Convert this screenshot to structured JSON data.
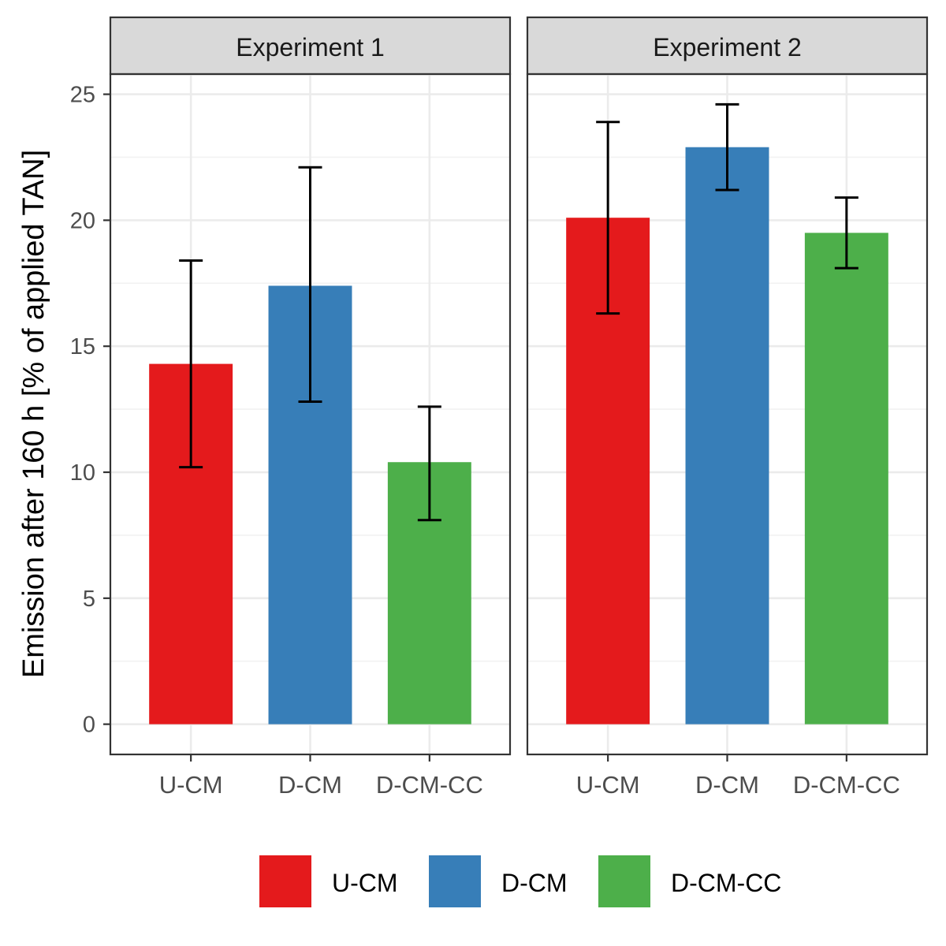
{
  "chart_data": {
    "type": "bar",
    "ylabel": "Emission after 160 h [% of applied TAN]",
    "xlabel": "",
    "ylim": [
      -1.2,
      25.8
    ],
    "yticks": [
      0,
      5,
      10,
      15,
      20,
      25
    ],
    "grid": true,
    "categories": [
      "U-CM",
      "D-CM",
      "D-CM-CC"
    ],
    "colors": {
      "U-CM": "#E41A1C",
      "D-CM": "#377EB8",
      "D-CM-CC": "#4DAF4A"
    },
    "panels": [
      {
        "title": "Experiment 1",
        "values": [
          14.3,
          17.4,
          10.4
        ],
        "error_low": [
          10.2,
          12.8,
          8.1
        ],
        "error_high": [
          18.4,
          22.1,
          12.6
        ]
      },
      {
        "title": "Experiment 2",
        "values": [
          20.1,
          22.9,
          19.5
        ],
        "error_low": [
          16.3,
          21.2,
          18.1
        ],
        "error_high": [
          23.9,
          24.6,
          20.9
        ]
      }
    ],
    "legend": {
      "position": "bottom",
      "entries": [
        "U-CM",
        "D-CM",
        "D-CM-CC"
      ]
    }
  }
}
